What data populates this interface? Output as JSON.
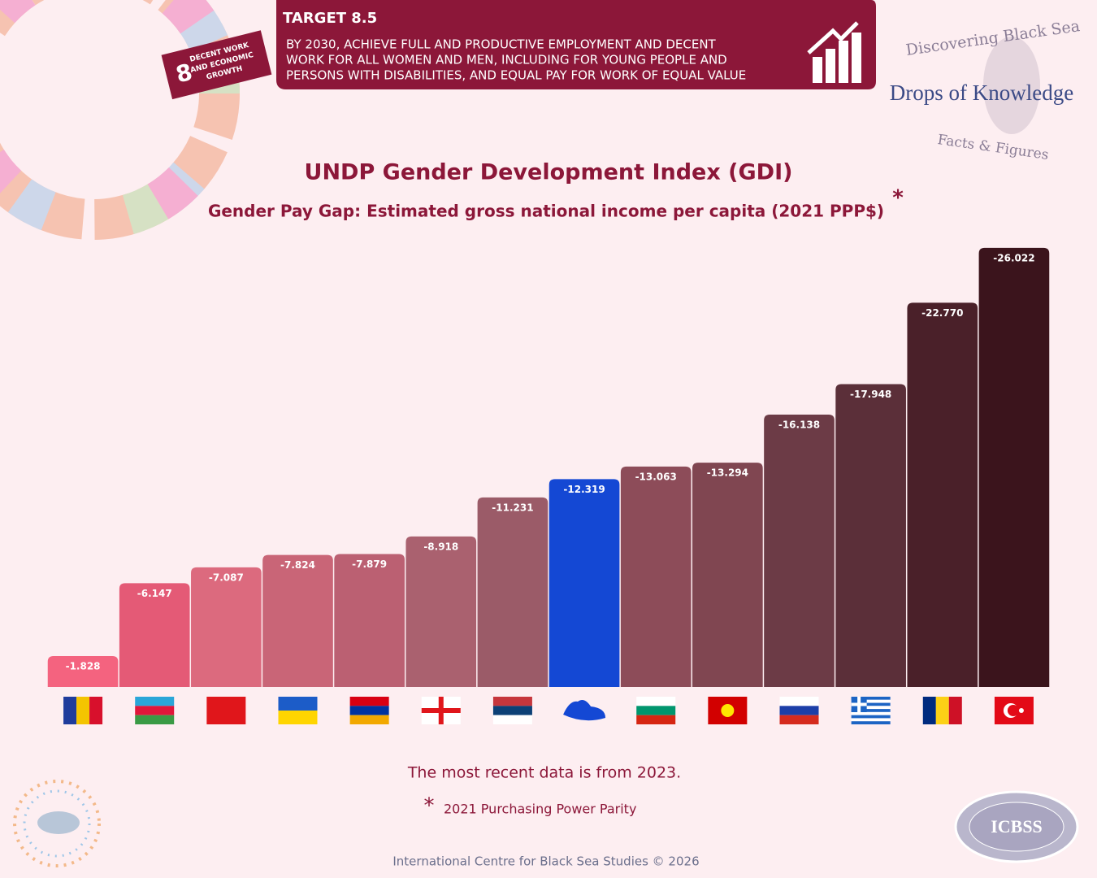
{
  "header": {
    "target": "TARGET 8.5",
    "target_text": [
      "BY 2030, ACHIEVE FULL AND PRODUCTIVE EMPLOYMENT AND DECENT",
      "WORK FOR ALL WOMEN AND MEN, INCLUDING FOR YOUNG PEOPLE AND",
      "PERSONS WITH DISABILITIES, AND EQUAL PAY FOR WORK OF EQUAL VALUE"
    ],
    "goal_number": "8",
    "goal_name": [
      "DECENT WORK",
      "AND ECONOMIC",
      "GROWTH"
    ],
    "logo_top": "Discovering Black Sea",
    "logo_main": "Drops of Knowledge",
    "logo_bottom": "Facts & Figures"
  },
  "chart_data": {
    "type": "bar",
    "title": "UNDP Gender Development Index (GDI)",
    "subtitle": "Gender Pay Gap: Estimated gross national income per capita (2021 PPP$)",
    "subtitle_mark": "*",
    "categories": [
      null,
      null,
      null,
      null,
      null,
      null,
      null,
      null,
      null,
      null,
      null,
      null,
      null,
      null
    ],
    "values": [
      -1.828,
      -6.147,
      -7.087,
      -7.824,
      -7.879,
      -8.918,
      -11.231,
      -12.319,
      -13.063,
      -13.294,
      -16.138,
      -17.948,
      -22.77,
      -26.022
    ],
    "value_labels": [
      "-1.828",
      "-6.147",
      "-7.087",
      "-7.824",
      "-7.879",
      "-8.918",
      "-11.231",
      "-12.319",
      "-13.063",
      "-13.294",
      "-16.138",
      "-17.948",
      "-22.770",
      "-26.022"
    ],
    "colors": [
      "#f4637f",
      "#e45a76",
      "#dc6a7e",
      "#c96577",
      "#bb6072",
      "#aa616f",
      "#9b5b68",
      "#1448d4",
      "#8d4c59",
      "#804651",
      "#6c3b46",
      "#5b2f39",
      "#4a2029",
      "#3b141c"
    ],
    "ylim": [
      0,
      -26.5
    ]
  },
  "footer": {
    "note": "The most recent data is from 2023.",
    "footnote_mark": "*",
    "footnote": "2021 Purchasing Power Parity",
    "credit": "International Centre for Black Sea Studies © 2026",
    "badge": "ICBSS"
  }
}
